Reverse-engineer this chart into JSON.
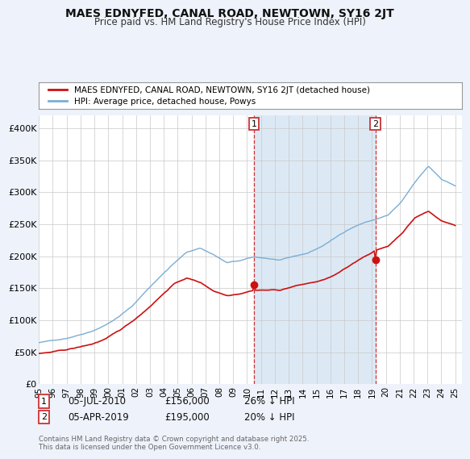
{
  "title": "MAES EDNYFED, CANAL ROAD, NEWTOWN, SY16 2JT",
  "subtitle": "Price paid vs. HM Land Registry's House Price Index (HPI)",
  "ylim": [
    0,
    420000
  ],
  "yticks": [
    0,
    50000,
    100000,
    150000,
    200000,
    250000,
    300000,
    350000,
    400000
  ],
  "ytick_labels": [
    "£0",
    "£50K",
    "£100K",
    "£150K",
    "£200K",
    "£250K",
    "£300K",
    "£350K",
    "£400K"
  ],
  "bg_color": "#eef2fa",
  "plot_bg_color": "#ffffff",
  "hpi_color": "#7aadd4",
  "price_color": "#cc1111",
  "shade_color": "#dce9f5",
  "marker1_x": 2010.5,
  "marker2_x": 2019.25,
  "marker1_y": 156000,
  "marker2_y": 195000,
  "legend1": "MAES EDNYFED, CANAL ROAD, NEWTOWN, SY16 2JT (detached house)",
  "legend2": "HPI: Average price, detached house, Powys",
  "copyright": "Contains HM Land Registry data © Crown copyright and database right 2025.\nThis data is licensed under the Open Government Licence v3.0.",
  "xlim_left": 1995.0,
  "xlim_right": 2025.5
}
